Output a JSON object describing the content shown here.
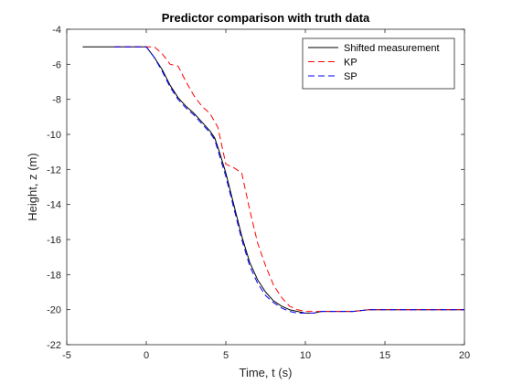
{
  "chart_data": {
    "type": "line",
    "title": "Predictor comparison with truth data",
    "xlabel": "Time, t (s)",
    "ylabel": "Height, z (m)",
    "xlim": [
      -5,
      20
    ],
    "ylim": [
      -22,
      -4
    ],
    "xticks": [
      -5,
      0,
      5,
      10,
      15,
      20
    ],
    "yticks": [
      -22,
      -20,
      -18,
      -16,
      -14,
      -12,
      -10,
      -8,
      -6,
      -4
    ],
    "grid": false,
    "legend_position": "top-right",
    "series": [
      {
        "name": "Shifted measurement",
        "color": "#000000",
        "style": "solid",
        "x": [
          -4,
          -3,
          -2,
          -1,
          -0.5,
          0,
          0.5,
          1,
          1.5,
          2,
          2.5,
          3,
          3.5,
          4,
          4.3,
          4.6,
          5,
          5.5,
          6,
          6.5,
          7,
          7.5,
          8,
          8.5,
          9,
          9.5,
          10,
          10.5,
          11,
          12,
          13,
          14,
          15,
          16,
          17,
          18,
          19,
          20
        ],
        "y": [
          -5.0,
          -5.0,
          -5.0,
          -5.0,
          -5.0,
          -5.0,
          -5.6,
          -6.3,
          -7.2,
          -7.9,
          -8.4,
          -8.8,
          -9.3,
          -9.8,
          -10.2,
          -11.0,
          -12.2,
          -14.0,
          -15.8,
          -17.3,
          -18.3,
          -19.0,
          -19.5,
          -19.8,
          -20.0,
          -20.1,
          -20.2,
          -20.2,
          -20.1,
          -20.1,
          -20.1,
          -20.0,
          -20.0,
          -20.0,
          -20.0,
          -20.0,
          -20.0,
          -20.0
        ]
      },
      {
        "name": "KP",
        "color": "#ff0000",
        "style": "dashed",
        "x": [
          -2,
          -1,
          0,
          0.5,
          1,
          1.5,
          2,
          2.5,
          3,
          3.5,
          4,
          4.5,
          5,
          5.5,
          6,
          6.5,
          7,
          7.5,
          8,
          8.5,
          9,
          9.5,
          10,
          10.5,
          11,
          12,
          13,
          14,
          15,
          16,
          17,
          18,
          19,
          20
        ],
        "y": [
          -5.0,
          -5.0,
          -5.0,
          -5.0,
          -5.4,
          -6.0,
          -6.1,
          -7.0,
          -7.8,
          -8.4,
          -8.8,
          -9.6,
          -11.7,
          -11.9,
          -12.2,
          -14.3,
          -16.2,
          -17.5,
          -18.6,
          -19.3,
          -19.8,
          -20.0,
          -20.1,
          -20.1,
          -20.1,
          -20.1,
          -20.1,
          -20.0,
          -20.0,
          -20.0,
          -20.0,
          -20.0,
          -20.0,
          -20.0
        ]
      },
      {
        "name": "SP",
        "color": "#0000ff",
        "style": "dashed",
        "x": [
          -2,
          -1,
          -0.5,
          0,
          0.5,
          1,
          1.5,
          2,
          2.5,
          3,
          3.5,
          4,
          4.3,
          4.6,
          5,
          5.5,
          6,
          6.5,
          7,
          7.5,
          8,
          8.5,
          9,
          9.5,
          10,
          10.5,
          11,
          12,
          13,
          14,
          15,
          16,
          17,
          18,
          19,
          20
        ],
        "y": [
          -5.0,
          -5.0,
          -5.0,
          -5.0,
          -5.6,
          -6.4,
          -7.3,
          -8.0,
          -8.5,
          -8.9,
          -9.4,
          -9.9,
          -10.3,
          -11.2,
          -12.4,
          -14.2,
          -16.0,
          -17.5,
          -18.5,
          -19.2,
          -19.6,
          -19.9,
          -20.1,
          -20.2,
          -20.2,
          -20.2,
          -20.1,
          -20.1,
          -20.1,
          -20.0,
          -20.0,
          -20.0,
          -20.0,
          -20.0,
          -20.0,
          -20.0
        ]
      }
    ]
  }
}
